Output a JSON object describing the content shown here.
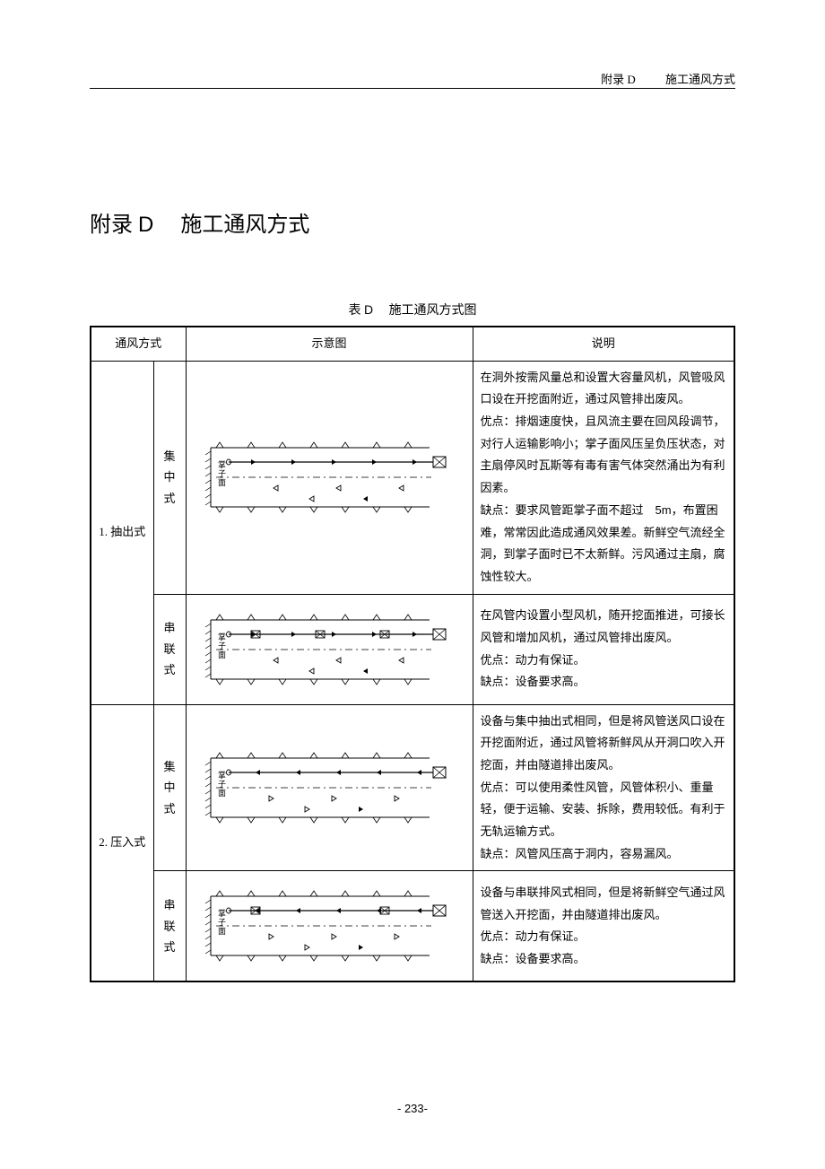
{
  "running_head": {
    "appendix": "附录 D",
    "title": "施工通风方式"
  },
  "page_title": {
    "prefix": "附录",
    "letter": "D",
    "text": "施工通风方式"
  },
  "table_caption": {
    "prefix": "表",
    "letter": "D",
    "text": "施工通风方式图"
  },
  "headers": {
    "method": "通风方式",
    "diagram": "示意图",
    "desc": "说明"
  },
  "rows": [
    {
      "method_label": "1. 抽出式",
      "subtypes": [
        {
          "sub_label": "集中式",
          "diagram": {
            "type": "exhaust-central",
            "face_label": "掌子面",
            "fan_count": 1,
            "duct_arrows": "right",
            "tunnel_arrows": "left"
          },
          "desc": "在洞外按需风量总和设置大容量风机，风管吸风口设在开挖面附近，通过风管排出废风。\n优点：排烟速度快，且风流主要在回风段调节，对行人运输影响小；掌子面风压呈负压状态，对主扇停风时瓦斯等有毒有害气体突然涌出为有利因素。\n缺点：要求风管距掌子面不超过　5m，布置困难，常常因此造成通风效果差。新鲜空气流经全洞，到掌子面时已不太新鲜。污风通过主扇，腐蚀性较大。"
        },
        {
          "sub_label": "串联式",
          "diagram": {
            "type": "exhaust-series",
            "face_label": "掌子面",
            "fan_count": 3,
            "duct_arrows": "right",
            "tunnel_arrows": "left"
          },
          "desc": "在风管内设置小型风机，随开挖面推进，可接长风管和增加风机，通过风管排出废风。\n优点：动力有保证。\n缺点：设备要求高。"
        }
      ]
    },
    {
      "method_label": "2. 压入式",
      "subtypes": [
        {
          "sub_label": "集中式",
          "diagram": {
            "type": "supply-central",
            "face_label": "掌子面",
            "fan_count": 1,
            "duct_arrows": "left",
            "tunnel_arrows": "right"
          },
          "desc": "设备与集中抽出式相同，但是将风管送风口设在开挖面附近，通过风管将新鲜风从开洞口吹入开挖面，并由隧道排出废风。\n优点：可以使用柔性风管，风管体积小、重量轻，便于运输、安装、拆除，费用较低。有利于无轨运输方式。\n缺点：风管风压高于洞内，容易漏风。"
        },
        {
          "sub_label": "串联式",
          "diagram": {
            "type": "supply-series",
            "face_label": "掌子面",
            "fan_count": 2,
            "duct_arrows": "left",
            "tunnel_arrows": "right"
          },
          "desc": "设备与串联排风式相同，但是将新鲜空气通过风管送入开挖面，并由隧道排出废风。\n优点：动力有保证。\n缺点：设备要求高。"
        }
      ]
    }
  ],
  "page_number": "- 233-",
  "colors": {
    "line": "#000000",
    "bg": "#ffffff"
  }
}
